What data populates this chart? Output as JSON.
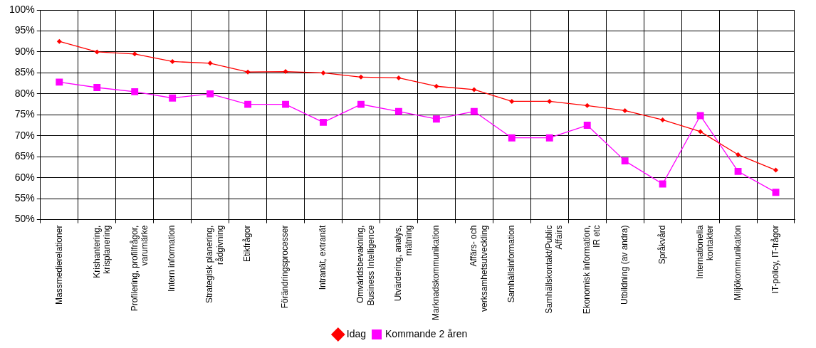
{
  "chart_data": {
    "type": "line",
    "categories": [
      "Massmedierelationer",
      "Krishantering, krisplanering",
      "Profilering, profilfrågor, varumärke",
      "Intern information",
      "Strategisk planering, rådgivning",
      "Etikfrågor",
      "Förändringsprocesser",
      "Intranät, extranät",
      "Omvärldsbevakning, Business Intelligence",
      "Utvärdering, analys, mätning",
      "Marknadskommunikation",
      "Affärs- och verksamhetsutveckling",
      "Samhällsinformation",
      "Samhällskontakt/Public Affairs",
      "Ekonomisk information, IR etc",
      "Utbildning (av andra)",
      "Språkvård",
      "Internationella kontakter",
      "Miljökommunikation",
      "IT-policy, IT-frågor"
    ],
    "series": [
      {
        "name": "Idag",
        "color": "#ff0000",
        "marker": "diamond",
        "values": [
          92.5,
          90,
          89.5,
          87.7,
          87.3,
          85.2,
          85.3,
          85,
          84,
          83.8,
          81.8,
          81,
          78.2,
          78.2,
          77.2,
          76,
          73.8,
          71,
          65.5,
          61.8
        ]
      },
      {
        "name": "Kommande 2 åren",
        "color": "#ff00ff",
        "marker": "square",
        "values": [
          82.8,
          81.5,
          80.5,
          79,
          80,
          77.5,
          77.5,
          73.2,
          77.5,
          75.8,
          74,
          75.8,
          69.5,
          69.5,
          72.5,
          64,
          58.5,
          74.8,
          61.5,
          56.5
        ]
      }
    ],
    "ylim": [
      50,
      100
    ],
    "yticks": [
      {
        "value": 50,
        "label": "50%"
      },
      {
        "value": 55,
        "label": "55%"
      },
      {
        "value": 60,
        "label": "60%"
      },
      {
        "value": 65,
        "label": "65%"
      },
      {
        "value": 70,
        "label": "70%"
      },
      {
        "value": 75,
        "label": "75%"
      },
      {
        "value": 80,
        "label": "80%"
      },
      {
        "value": 85,
        "label": "85%"
      },
      {
        "value": 90,
        "label": "90%"
      },
      {
        "value": 95,
        "label": "95%"
      },
      {
        "value": 100,
        "label": "100%"
      }
    ],
    "grid": true,
    "legend": "bottom",
    "line_style": "solid"
  }
}
